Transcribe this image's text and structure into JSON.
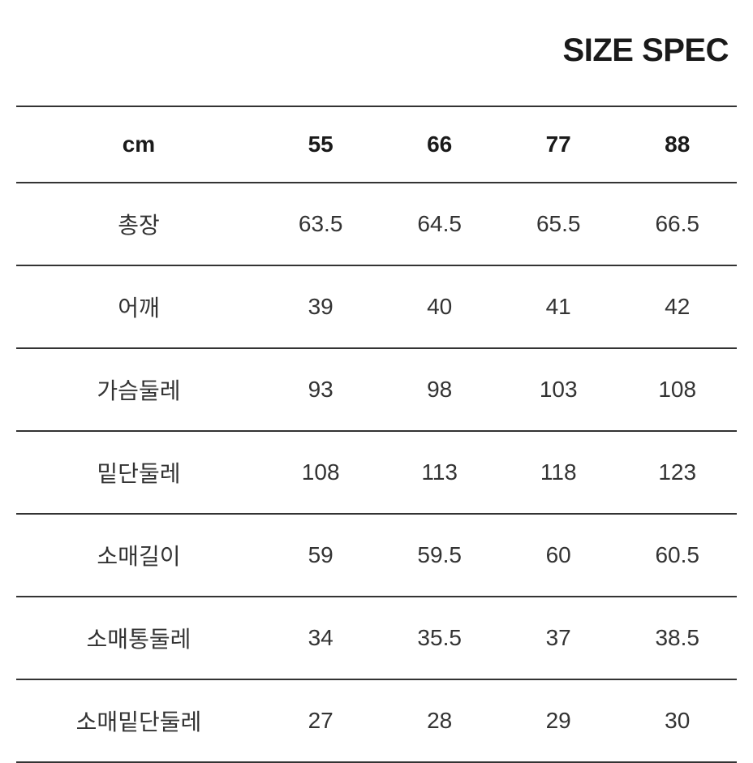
{
  "title": "SIZE SPEC",
  "table": {
    "unit_label": "cm",
    "columns": [
      "55",
      "66",
      "77",
      "88"
    ],
    "rows": [
      {
        "label": "총장",
        "values": [
          "63.5",
          "64.5",
          "65.5",
          "66.5"
        ]
      },
      {
        "label": "어깨",
        "values": [
          "39",
          "40",
          "41",
          "42"
        ]
      },
      {
        "label": "가슴둘레",
        "values": [
          "93",
          "98",
          "103",
          "108"
        ]
      },
      {
        "label": "밑단둘레",
        "values": [
          "108",
          "113",
          "118",
          "123"
        ]
      },
      {
        "label": "소매길이",
        "values": [
          "59",
          "59.5",
          "60",
          "60.5"
        ]
      },
      {
        "label": "소매통둘레",
        "values": [
          "34",
          "35.5",
          "37",
          "38.5"
        ]
      },
      {
        "label": "소매밑단둘레",
        "values": [
          "27",
          "28",
          "29",
          "30"
        ]
      }
    ],
    "border_color": "#333333",
    "text_color": "#333333",
    "header_text_color": "#1a1a1a",
    "background_color": "#ffffff",
    "title_fontsize": 40,
    "cell_fontsize": 28,
    "header_fontweight": 700,
    "body_fontweight": 400
  }
}
